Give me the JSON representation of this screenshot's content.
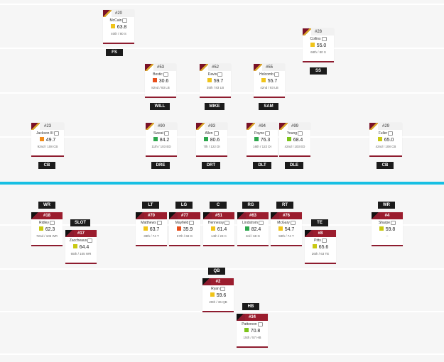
{
  "colors": {
    "elite": "#2da74c",
    "good": "#7cc419",
    "above_avg": "#c9c912",
    "average": "#f0c419",
    "below": "#f18c1b",
    "poor": "#e84e1b",
    "line_of_scrimmage": "#17bfe3",
    "team_red": "#9b1d2e"
  },
  "defense": {
    "players": [
      {
        "number": "#20",
        "name": "McCain",
        "grade": "63.8",
        "grade_color": "average",
        "info": "40th / 80 S",
        "position": "FS"
      },
      {
        "number": "#28",
        "name": "Collins",
        "grade": "55.0",
        "grade_color": "average",
        "info": "68th / 80 S",
        "position": "SS"
      },
      {
        "number": "#53",
        "name": "Bostic",
        "grade": "30.6",
        "grade_color": "poor",
        "info": "82nd / 83 LB",
        "position": "WILL"
      },
      {
        "number": "#52",
        "name": "Davis",
        "grade": "59.7",
        "grade_color": "average",
        "info": "35th / 83 LB",
        "position": "MIKE"
      },
      {
        "number": "#55",
        "name": "Holcomb",
        "grade": "55.7",
        "grade_color": "average",
        "info": "42nd / 83 LB",
        "position": "SAM"
      },
      {
        "number": "#23",
        "name": "Jackson III",
        "grade": "49.7",
        "grade_color": "below",
        "info": "92nd / 108 CB",
        "position": "CB"
      },
      {
        "number": "#90",
        "name": "Sweat",
        "grade": "84.2",
        "grade_color": "elite",
        "info": "11th / 103 ED",
        "position": "DRE"
      },
      {
        "number": "#93",
        "name": "Allen",
        "grade": "80.6",
        "grade_color": "elite",
        "info": "7th / 122 DI",
        "position": "DRT"
      },
      {
        "number": "#94",
        "name": "Payne",
        "grade": "76.3",
        "grade_color": "elite",
        "info": "16th / 122 DI",
        "position": "DLT"
      },
      {
        "number": "#99",
        "name": "Young",
        "grade": "68.4",
        "grade_color": "good",
        "info": "42nd / 103 ED",
        "position": "DLE"
      },
      {
        "number": "#29",
        "name": "Fuller",
        "grade": "65.0",
        "grade_color": "above_avg",
        "info": "42nd / 108 CB",
        "position": "CB"
      }
    ]
  },
  "offense": {
    "players": [
      {
        "number": "#18",
        "name": "Ridley",
        "grade": "62.3",
        "grade_color": "above_avg",
        "info": "72nd / 105 WR",
        "position": "WR"
      },
      {
        "number": "#17",
        "name": "Zaccheaus",
        "grade": "64.4",
        "grade_color": "above_avg",
        "info": "65th / 105 WR",
        "position": "SLOT"
      },
      {
        "number": "#70",
        "name": "Matthews",
        "grade": "63.7",
        "grade_color": "average",
        "info": "38th / 74 T",
        "position": "LT"
      },
      {
        "number": "#77",
        "name": "Mayfield",
        "grade": "35.9",
        "grade_color": "poor",
        "info": "67th / 68 G",
        "position": "LG"
      },
      {
        "number": "#51",
        "name": "Hennessy",
        "grade": "61.4",
        "grade_color": "average",
        "info": "14th / 23 C",
        "position": "C"
      },
      {
        "number": "#63",
        "name": "Lindstrom",
        "grade": "82.4",
        "grade_color": "elite",
        "info": "3rd / 68 G",
        "position": "RG"
      },
      {
        "number": "#76",
        "name": "McGary",
        "grade": "54.7",
        "grade_color": "average",
        "info": "59th / 74 T",
        "position": "RT"
      },
      {
        "number": "#8",
        "name": "Pitts",
        "grade": "65.6",
        "grade_color": "above_avg",
        "info": "26th / 63 TE",
        "position": "TE"
      },
      {
        "number": "#4",
        "name": "Sharpe",
        "grade": "59.8",
        "grade_color": "above_avg",
        "info": "--",
        "position": "WR"
      },
      {
        "number": "#2",
        "name": "Ryan",
        "grade": "59.6",
        "grade_color": "average",
        "info": "29th / 36 QB",
        "position": "QB"
      },
      {
        "number": "#34",
        "name": "Patterson",
        "grade": "70.8",
        "grade_color": "good",
        "info": "15th / 57 HB",
        "position": "HB"
      }
    ]
  }
}
